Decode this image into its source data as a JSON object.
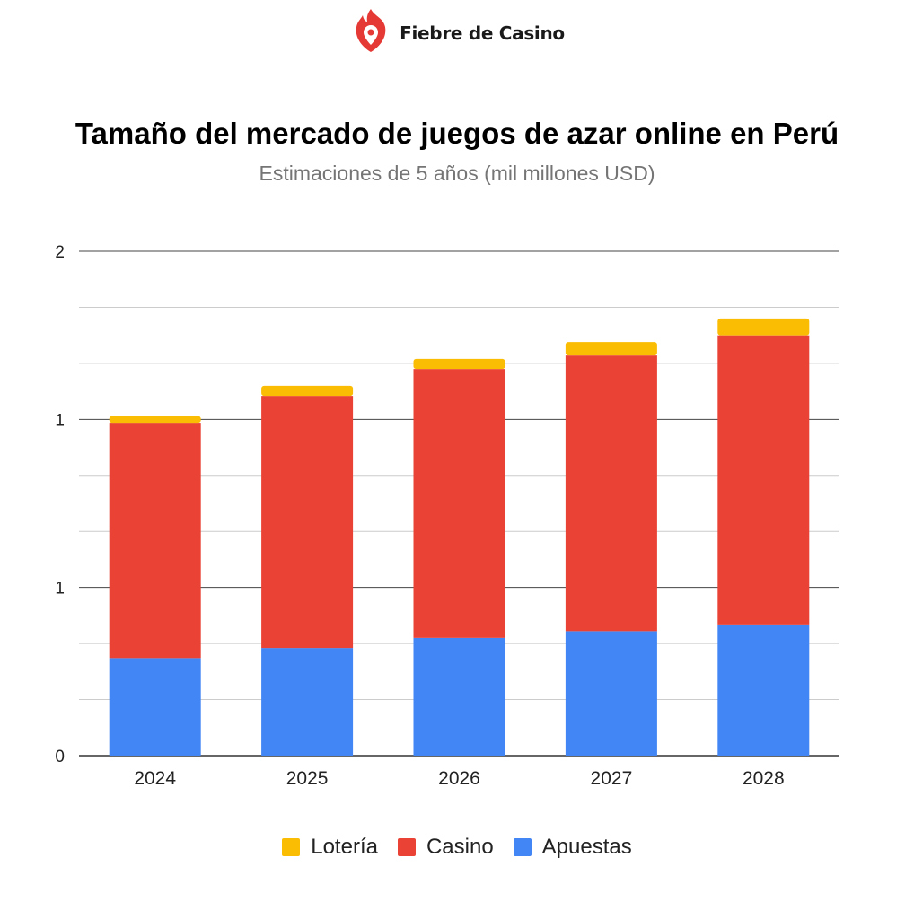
{
  "brand": {
    "name": "Fiebre de Casino",
    "logo_icon": "flame-location-pin-icon",
    "color": "#e53935"
  },
  "chart_data": {
    "type": "bar",
    "stacked": true,
    "title": "Tamaño del mercado de juegos de azar online en Perú",
    "subtitle": "Estimaciones de 5 años (mil millones USD)",
    "xlabel": "",
    "ylabel": "",
    "categories": [
      "2024",
      "2025",
      "2026",
      "2027",
      "2028"
    ],
    "series": [
      {
        "name": "Apuestas",
        "color": "#4285f4",
        "values": [
          0.29,
          0.32,
          0.35,
          0.37,
          0.39
        ]
      },
      {
        "name": "Casino",
        "color": "#ea4335",
        "values": [
          0.7,
          0.75,
          0.8,
          0.82,
          0.86
        ]
      },
      {
        "name": "Lotería",
        "color": "#fbbc04",
        "values": [
          0.02,
          0.03,
          0.03,
          0.04,
          0.05
        ]
      }
    ],
    "ylim": [
      0,
      1.5
    ],
    "yticks": [
      0,
      0.5,
      1,
      1.5
    ],
    "ytick_labels": [
      "0",
      "1",
      "1",
      "2"
    ],
    "grid": true,
    "legend_position": "bottom"
  }
}
